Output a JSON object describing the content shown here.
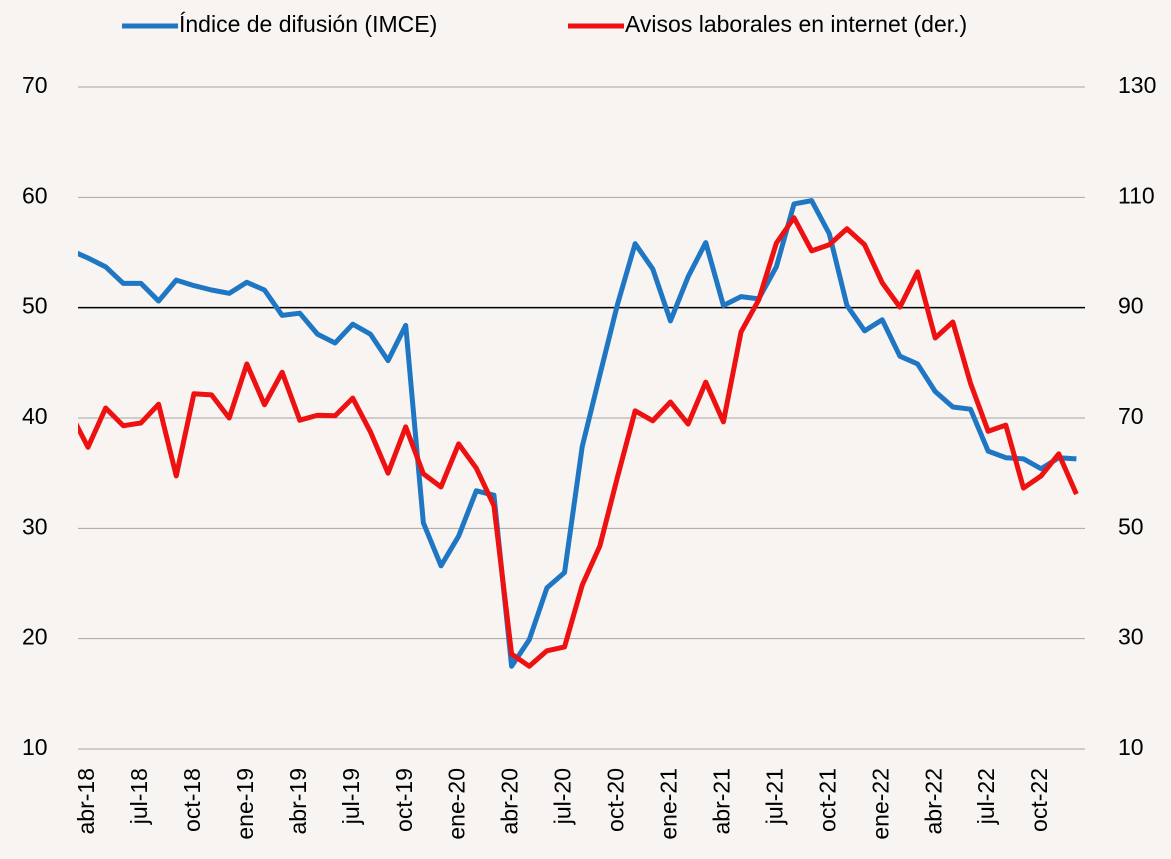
{
  "chart_data": {
    "type": "line",
    "categories": [
      null,
      "abr-18",
      null,
      null,
      "jul-18",
      null,
      null,
      "oct-18",
      null,
      null,
      "ene-19",
      null,
      null,
      "abr-19",
      null,
      null,
      "jul-19",
      null,
      null,
      "oct-19",
      null,
      null,
      "ene-20",
      null,
      null,
      "abr-20",
      null,
      null,
      "jul-20",
      null,
      null,
      "oct-20",
      null,
      null,
      "ene-21",
      null,
      null,
      "abr-21",
      null,
      null,
      "jul-21",
      null,
      null,
      "oct-21",
      null,
      null,
      "ene-22",
      null,
      null,
      "abr-22",
      null,
      null,
      "jul-22",
      null,
      null,
      "oct-22",
      null,
      null
    ],
    "series": [
      {
        "name": "Índice de difusión (IMCE)",
        "color": "#1f77c4",
        "values": [
          55.2,
          54.5,
          53.7,
          52.2,
          52.2,
          50.6,
          52.5,
          52.0,
          51.6,
          51.3,
          52.3,
          51.6,
          49.3,
          49.5,
          47.6,
          46.8,
          48.5,
          47.6,
          45.2,
          48.4,
          30.5,
          26.6,
          29.3,
          33.4,
          33.0,
          17.5,
          19.9,
          24.6,
          26.0,
          37.4,
          43.9,
          50.3,
          55.8,
          53.5,
          48.8,
          52.8,
          55.9,
          50.2,
          51.0,
          50.8,
          53.7,
          59.4,
          59.7,
          56.7,
          50.2,
          47.9,
          48.9,
          45.6,
          44.9,
          42.4,
          41.0,
          40.8,
          37.0,
          36.4,
          36.3,
          35.4,
          36.4,
          36.3
        ]
      },
      {
        "name": "Avisos laborales en internet (der.)",
        "color": "#ee1111",
        "axis": "y2",
        "values": [
          70.9,
          64.7,
          71.8,
          68.6,
          69.1,
          72.5,
          59.5,
          74.4,
          74.2,
          70.0,
          79.8,
          72.4,
          78.3,
          69.6,
          70.5,
          70.4,
          73.6,
          67.5,
          60.0,
          68.4,
          59.9,
          57.5,
          65.3,
          60.9,
          54.1,
          27.2,
          25.0,
          27.8,
          28.5,
          39.7,
          46.8,
          59.3,
          71.3,
          69.5,
          72.9,
          68.9,
          76.5,
          69.3,
          85.6,
          91.4,
          101.7,
          106.3,
          100.3,
          101.4,
          104.3,
          101.4,
          94.5,
          90.1,
          96.5,
          84.5,
          87.4,
          76.3,
          67.6,
          68.7,
          57.3,
          59.5,
          63.5,
          56.2
        ]
      }
    ],
    "ylim": [
      10,
      70
    ],
    "yticks": [
      10,
      20,
      30,
      40,
      50,
      60,
      70
    ],
    "y2lim": [
      10,
      130
    ],
    "y2ticks": [
      10,
      30,
      50,
      70,
      90,
      110,
      130
    ],
    "baseline": 50,
    "grid": true,
    "legend": "top"
  }
}
